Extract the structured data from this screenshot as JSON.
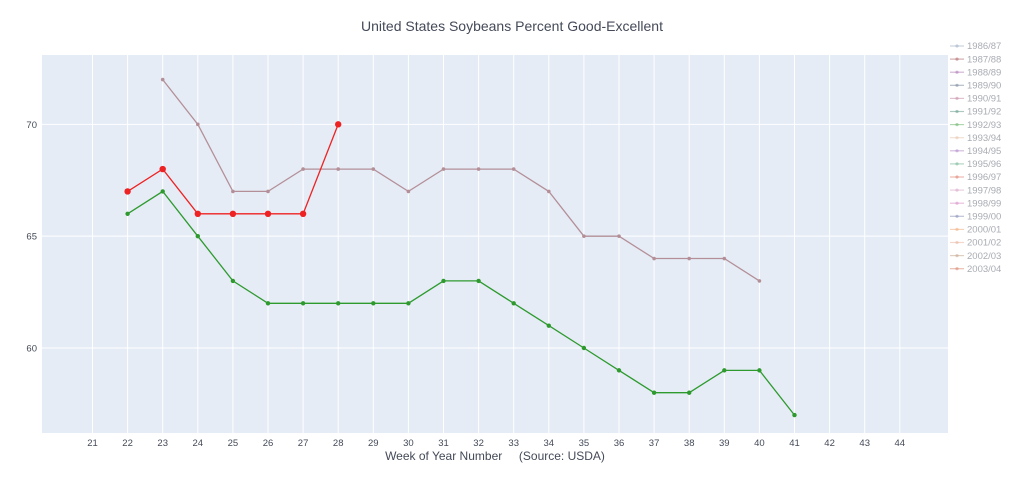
{
  "chart_data": {
    "type": "line",
    "title": "United States Soybeans Percent Good-Excellent",
    "xlabel": "Week of Year Number     (Source: USDA)",
    "ylabel": "",
    "categories": [
      "21",
      "22",
      "23",
      "24",
      "25",
      "26",
      "27",
      "28",
      "29",
      "30",
      "31",
      "32",
      "33",
      "34",
      "35",
      "36",
      "37",
      "38",
      "39",
      "40",
      "41",
      "42",
      "43",
      "44"
    ],
    "ylim": [
      56.2,
      73.1
    ],
    "yticks": [
      60,
      65,
      70
    ],
    "grid": true,
    "legend_position": "right",
    "legend": [
      "1986/87",
      "1987/88",
      "1988/89",
      "1989/90",
      "1990/91",
      "1991/92",
      "1992/93",
      "1993/94",
      "1994/95",
      "1995/96",
      "1996/97",
      "1997/98",
      "1998/99",
      "1999/00",
      "2000/01",
      "2001/02",
      "2002/03",
      "2003/04"
    ],
    "legend_colors": [
      "#9fb0c8",
      "#b06a6a",
      "#b07ab8",
      "#7a8a9a",
      "#c890a8",
      "#6aa090",
      "#70b870",
      "#e8c8b0",
      "#b088c8",
      "#78b898",
      "#e08070",
      "#d8a8c8",
      "#d890c8",
      "#8890b8",
      "#f0b080",
      "#e8b8a0",
      "#c8a890",
      "#d88870"
    ],
    "series": [
      {
        "color": "#b48f98",
        "marker_size": 1.8,
        "x": [
          "23",
          "24",
          "25",
          "26",
          "27",
          "28",
          "29",
          "30",
          "31",
          "32",
          "33",
          "34",
          "35",
          "36",
          "37",
          "38",
          "39",
          "40"
        ],
        "values": [
          72,
          70,
          67,
          67,
          68,
          68,
          68,
          67,
          68,
          68,
          68,
          67,
          65,
          65,
          64,
          64,
          64,
          63
        ]
      },
      {
        "color": "#2e9a2e",
        "marker_size": 2.2,
        "x": [
          "22",
          "23",
          "24",
          "25",
          "26",
          "27",
          "28",
          "29",
          "30",
          "31",
          "32",
          "33",
          "34",
          "35",
          "36",
          "37",
          "38",
          "39",
          "40",
          "41"
        ],
        "values": [
          66,
          67,
          65,
          63,
          62,
          62,
          62,
          62,
          62,
          63,
          63,
          62,
          61,
          60,
          59,
          58,
          58,
          59,
          59,
          57
        ]
      },
      {
        "color": "#ee2222",
        "marker_size": 3.2,
        "x": [
          "22",
          "23",
          "24",
          "25",
          "26",
          "27",
          "28"
        ],
        "values": [
          67,
          68,
          66,
          66,
          66,
          66,
          70
        ]
      }
    ]
  }
}
